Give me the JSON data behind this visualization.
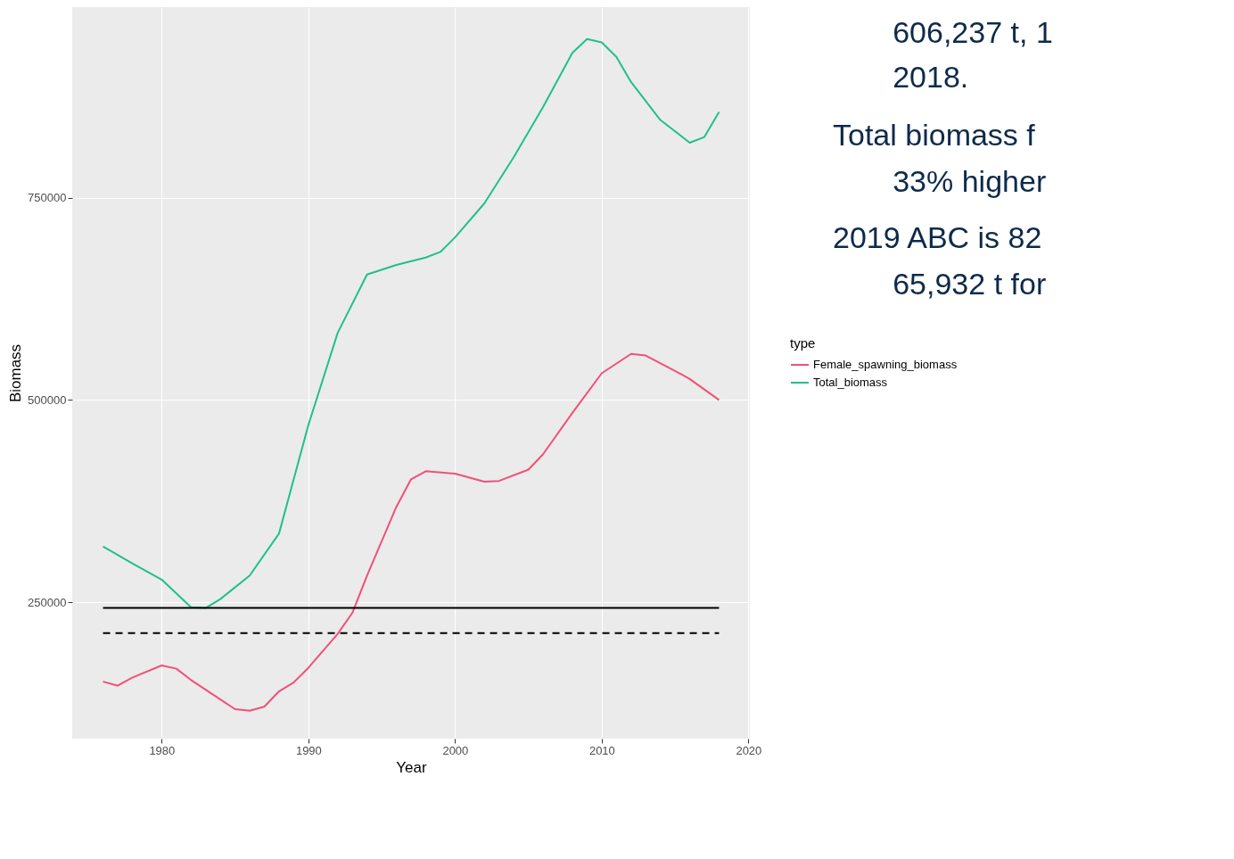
{
  "chart_data": {
    "type": "line",
    "xlabel": "Year",
    "ylabel": "Biomass",
    "legend_title": "type",
    "legend": "right",
    "grid": true,
    "line_style": "solid",
    "xlim": [
      1973.9,
      2020.1
    ],
    "xticks": [
      1980,
      1990,
      2000,
      2010,
      2020
    ],
    "ylim": [
      81600,
      985500
    ],
    "yticks": [
      250000,
      500000,
      750000
    ],
    "series": [
      {
        "name": "Female_spawning_biomass",
        "color": "#f0507a",
        "x": [
          1976,
          1977,
          1978,
          1980,
          1981,
          1982,
          1984,
          1985,
          1986,
          1987,
          1988,
          1989,
          1990,
          1992,
          1993,
          1994,
          1996,
          1997,
          1998,
          2000,
          2002,
          2003,
          2005,
          2006,
          2008,
          2010,
          2012,
          2013,
          2015,
          2016,
          2018
        ],
        "values": [
          152000,
          147000,
          157000,
          172000,
          168000,
          154000,
          130000,
          118000,
          116000,
          121000,
          140000,
          151000,
          169000,
          211000,
          237000,
          283000,
          368000,
          402000,
          412000,
          409000,
          399000,
          400000,
          414000,
          433000,
          484000,
          533000,
          557000,
          555000,
          536000,
          526000,
          500000
        ]
      },
      {
        "name": "Total_biomass",
        "color": "#20c08a",
        "x": [
          1976,
          1978,
          1980,
          1982,
          1983,
          1984,
          1986,
          1988,
          1989,
          1990,
          1992,
          1994,
          1996,
          1998,
          1999,
          2000,
          2002,
          2004,
          2006,
          2008,
          2009,
          2010,
          2011,
          2012,
          2014,
          2016,
          2017,
          2018
        ],
        "values": [
          319000,
          298000,
          278000,
          244000,
          243000,
          254000,
          283000,
          335000,
          402000,
          469000,
          583000,
          655000,
          667000,
          676000,
          683000,
          701000,
          743000,
          800000,
          862000,
          929000,
          946000,
          942000,
          924000,
          893000,
          846000,
          818000,
          825000,
          856000
        ]
      },
      {
        "type": "line",
        "color": "#000000",
        "line_style": "solid",
        "x": [
          1976,
          2018
        ],
        "values": [
          243000,
          243000
        ]
      },
      {
        "type": "line",
        "color": "#000000",
        "line_style": "dashed",
        "x": [
          1976,
          2018
        ],
        "values": [
          212000,
          212000
        ]
      }
    ],
    "annotations": [
      "606,237 t, 1",
      "2018.",
      "Total biomass f",
      "33% higher",
      "2019 ABC is 82",
      "65,932 t for"
    ]
  }
}
